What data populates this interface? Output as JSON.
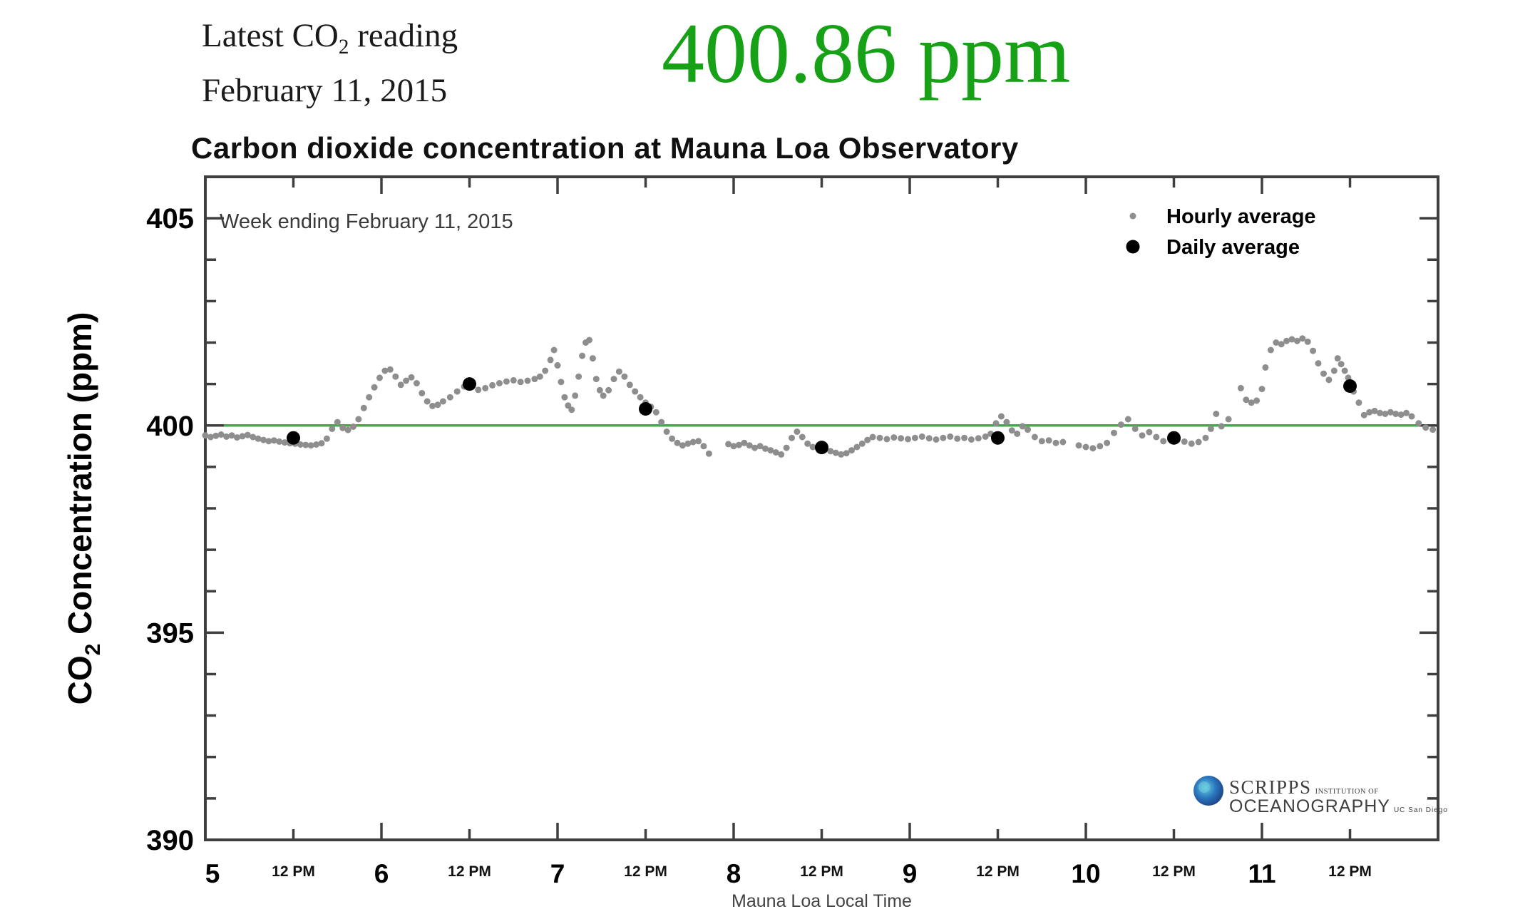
{
  "header": {
    "latest_prefix": "Latest CO",
    "latest_sub": "2",
    "latest_suffix": " reading",
    "date_line": "February 11, 2015",
    "reading": "400.86 ppm",
    "reading_color": "#16a116",
    "title": "Carbon dioxide concentration at Mauna Loa Observatory"
  },
  "logo": {
    "org_line1": "SCRIPPS",
    "org_line1_small": "INSTITUTION OF",
    "org_line2": "OCEANOGRAPHY",
    "org_line2_small": "UC San Diego",
    "globe_inner": "#6ecfdf",
    "globe_mid": "#2b78c0",
    "globe_outer": "#16306e",
    "text_color": "#3f3f3f"
  },
  "chart_data": {
    "type": "scatter",
    "title": "Carbon dioxide concentration at Mauna Loa Observatory",
    "annotation": "Week ending February 11, 2015",
    "xlabel": "Mauna Loa Local Time",
    "ylabel_prefix": "CO",
    "ylabel_sub": "2",
    "ylabel_suffix": " Concentration (ppm)",
    "xlim": [
      5,
      12
    ],
    "ylim": [
      390,
      406
    ],
    "y_major_ticks": [
      390,
      395,
      400,
      405
    ],
    "y_minor_step": 1,
    "x_day_ticks": [
      5,
      6,
      7,
      8,
      9,
      10,
      11
    ],
    "x_half_day_label": "12 PM",
    "grid": false,
    "frame_color": "#3f3f3f",
    "reference_line": {
      "y": 400,
      "color": "#43a84e"
    },
    "legend_position": "top-right",
    "legend": [
      {
        "label": "Hourly average",
        "color": "#8e8e8e",
        "size": 4.5
      },
      {
        "label": "Daily average",
        "color": "#000000",
        "size": 9.5
      }
    ],
    "series": [
      {
        "name": "Hourly average",
        "color": "#8e8e8e",
        "marker_size": 4.5,
        "points": [
          [
            5.0,
            399.76
          ],
          [
            5.03,
            399.72
          ],
          [
            5.06,
            399.75
          ],
          [
            5.09,
            399.78
          ],
          [
            5.12,
            399.73
          ],
          [
            5.15,
            399.76
          ],
          [
            5.18,
            399.71
          ],
          [
            5.21,
            399.74
          ],
          [
            5.24,
            399.77
          ],
          [
            5.27,
            399.72
          ],
          [
            5.3,
            399.68
          ],
          [
            5.33,
            399.65
          ],
          [
            5.36,
            399.62
          ],
          [
            5.39,
            399.64
          ],
          [
            5.42,
            399.61
          ],
          [
            5.45,
            399.59
          ],
          [
            5.48,
            399.57
          ],
          [
            5.51,
            399.56
          ],
          [
            5.54,
            399.54
          ],
          [
            5.57,
            399.53
          ],
          [
            5.6,
            399.52
          ],
          [
            5.63,
            399.54
          ],
          [
            5.66,
            399.57
          ],
          [
            5.69,
            399.68
          ],
          [
            5.72,
            399.92
          ],
          [
            5.75,
            400.08
          ],
          [
            5.78,
            399.94
          ],
          [
            5.81,
            399.89
          ],
          [
            5.84,
            399.97
          ],
          [
            5.87,
            400.15
          ],
          [
            5.9,
            400.42
          ],
          [
            5.93,
            400.68
          ],
          [
            5.96,
            400.92
          ],
          [
            5.99,
            401.15
          ],
          [
            6.02,
            401.32
          ],
          [
            6.05,
            401.35
          ],
          [
            6.08,
            401.18
          ],
          [
            6.11,
            400.98
          ],
          [
            6.14,
            401.08
          ],
          [
            6.17,
            401.16
          ],
          [
            6.2,
            401.02
          ],
          [
            6.23,
            400.78
          ],
          [
            6.26,
            400.58
          ],
          [
            6.29,
            400.47
          ],
          [
            6.32,
            400.5
          ],
          [
            6.35,
            400.58
          ],
          [
            6.39,
            400.68
          ],
          [
            6.43,
            400.82
          ],
          [
            6.47,
            400.94
          ],
          [
            6.51,
            401.02
          ],
          [
            6.55,
            400.86
          ],
          [
            6.59,
            400.9
          ],
          [
            6.63,
            400.97
          ],
          [
            6.67,
            401.02
          ],
          [
            6.71,
            401.06
          ],
          [
            6.75,
            401.09
          ],
          [
            6.79,
            401.05
          ],
          [
            6.83,
            401.08
          ],
          [
            6.87,
            401.12
          ],
          [
            6.9,
            401.18
          ],
          [
            6.93,
            401.32
          ],
          [
            6.96,
            401.58
          ],
          [
            6.98,
            401.82
          ],
          [
            7.0,
            401.45
          ],
          [
            7.02,
            401.05
          ],
          [
            7.04,
            400.68
          ],
          [
            7.06,
            400.48
          ],
          [
            7.08,
            400.38
          ],
          [
            7.1,
            400.72
          ],
          [
            7.12,
            401.18
          ],
          [
            7.14,
            401.68
          ],
          [
            7.16,
            402.0
          ],
          [
            7.18,
            402.06
          ],
          [
            7.2,
            401.62
          ],
          [
            7.22,
            401.12
          ],
          [
            7.24,
            400.85
          ],
          [
            7.26,
            400.72
          ],
          [
            7.29,
            400.85
          ],
          [
            7.32,
            401.12
          ],
          [
            7.35,
            401.3
          ],
          [
            7.38,
            401.18
          ],
          [
            7.41,
            400.98
          ],
          [
            7.44,
            400.82
          ],
          [
            7.47,
            400.68
          ],
          [
            7.5,
            400.55
          ],
          [
            7.53,
            400.45
          ],
          [
            7.56,
            400.32
          ],
          [
            7.59,
            400.08
          ],
          [
            7.62,
            399.85
          ],
          [
            7.65,
            399.68
          ],
          [
            7.68,
            399.58
          ],
          [
            7.71,
            399.52
          ],
          [
            7.74,
            399.56
          ],
          [
            7.77,
            399.6
          ],
          [
            7.8,
            399.62
          ],
          [
            7.83,
            399.5
          ],
          [
            7.86,
            399.32
          ],
          [
            7.97,
            399.55
          ],
          [
            8.0,
            399.5
          ],
          [
            8.03,
            399.53
          ],
          [
            8.06,
            399.58
          ],
          [
            8.09,
            399.52
          ],
          [
            8.12,
            399.46
          ],
          [
            8.15,
            399.5
          ],
          [
            8.18,
            399.44
          ],
          [
            8.21,
            399.4
          ],
          [
            8.24,
            399.35
          ],
          [
            8.27,
            399.3
          ],
          [
            8.3,
            399.46
          ],
          [
            8.33,
            399.7
          ],
          [
            8.36,
            399.85
          ],
          [
            8.39,
            399.72
          ],
          [
            8.42,
            399.56
          ],
          [
            8.45,
            399.48
          ],
          [
            8.48,
            399.45
          ],
          [
            8.52,
            399.42
          ],
          [
            8.55,
            399.38
          ],
          [
            8.58,
            399.34
          ],
          [
            8.61,
            399.3
          ],
          [
            8.64,
            399.33
          ],
          [
            8.67,
            399.4
          ],
          [
            8.7,
            399.48
          ],
          [
            8.73,
            399.56
          ],
          [
            8.76,
            399.65
          ],
          [
            8.79,
            399.72
          ],
          [
            8.83,
            399.7
          ],
          [
            8.87,
            399.67
          ],
          [
            8.91,
            399.71
          ],
          [
            8.95,
            399.69
          ],
          [
            8.99,
            399.67
          ],
          [
            9.03,
            399.7
          ],
          [
            9.07,
            399.73
          ],
          [
            9.11,
            399.69
          ],
          [
            9.15,
            399.66
          ],
          [
            9.19,
            399.7
          ],
          [
            9.23,
            399.73
          ],
          [
            9.27,
            399.68
          ],
          [
            9.31,
            399.7
          ],
          [
            9.35,
            399.66
          ],
          [
            9.39,
            399.69
          ],
          [
            9.43,
            399.73
          ],
          [
            9.46,
            399.8
          ],
          [
            9.49,
            400.05
          ],
          [
            9.52,
            400.22
          ],
          [
            9.55,
            400.08
          ],
          [
            9.58,
            399.88
          ],
          [
            9.61,
            399.8
          ],
          [
            9.64,
            399.98
          ],
          [
            9.67,
            399.9
          ],
          [
            9.71,
            399.72
          ],
          [
            9.75,
            399.62
          ],
          [
            9.79,
            399.64
          ],
          [
            9.83,
            399.58
          ],
          [
            9.87,
            399.6
          ],
          [
            9.96,
            399.52
          ],
          [
            10.0,
            399.48
          ],
          [
            10.04,
            399.45
          ],
          [
            10.08,
            399.5
          ],
          [
            10.12,
            399.58
          ],
          [
            10.16,
            399.82
          ],
          [
            10.2,
            400.02
          ],
          [
            10.24,
            400.15
          ],
          [
            10.28,
            399.92
          ],
          [
            10.32,
            399.76
          ],
          [
            10.36,
            399.84
          ],
          [
            10.4,
            399.72
          ],
          [
            10.44,
            399.62
          ],
          [
            10.48,
            399.66
          ],
          [
            10.52,
            399.65
          ],
          [
            10.56,
            399.61
          ],
          [
            10.6,
            399.56
          ],
          [
            10.64,
            399.6
          ],
          [
            10.68,
            399.7
          ],
          [
            10.71,
            399.92
          ],
          [
            10.74,
            400.28
          ],
          [
            10.77,
            399.98
          ],
          [
            10.81,
            400.15
          ],
          [
            10.88,
            400.9
          ],
          [
            10.91,
            400.62
          ],
          [
            10.94,
            400.55
          ],
          [
            10.97,
            400.6
          ],
          [
            11.0,
            400.88
          ],
          [
            11.02,
            401.4
          ],
          [
            11.05,
            401.82
          ],
          [
            11.08,
            402.0
          ],
          [
            11.11,
            401.96
          ],
          [
            11.14,
            402.04
          ],
          [
            11.17,
            402.08
          ],
          [
            11.2,
            402.04
          ],
          [
            11.23,
            402.1
          ],
          [
            11.26,
            402.02
          ],
          [
            11.29,
            401.8
          ],
          [
            11.32,
            401.5
          ],
          [
            11.35,
            401.25
          ],
          [
            11.38,
            401.1
          ],
          [
            11.41,
            401.32
          ],
          [
            11.43,
            401.62
          ],
          [
            11.45,
            401.48
          ],
          [
            11.47,
            401.32
          ],
          [
            11.49,
            401.15
          ],
          [
            11.52,
            400.82
          ],
          [
            11.55,
            400.55
          ],
          [
            11.58,
            400.25
          ],
          [
            11.61,
            400.32
          ],
          [
            11.64,
            400.35
          ],
          [
            11.67,
            400.3
          ],
          [
            11.7,
            400.28
          ],
          [
            11.73,
            400.32
          ],
          [
            11.76,
            400.28
          ],
          [
            11.79,
            400.26
          ],
          [
            11.82,
            400.3
          ],
          [
            11.85,
            400.22
          ],
          [
            11.89,
            400.05
          ],
          [
            11.93,
            399.95
          ],
          [
            11.97,
            399.9
          ]
        ]
      },
      {
        "name": "Daily average",
        "color": "#000000",
        "marker_size": 9.5,
        "points": [
          [
            5.5,
            399.7
          ],
          [
            6.5,
            401.0
          ],
          [
            7.5,
            400.4
          ],
          [
            8.5,
            399.47
          ],
          [
            9.5,
            399.7
          ],
          [
            10.5,
            399.7
          ],
          [
            11.5,
            400.95
          ]
        ]
      }
    ]
  }
}
